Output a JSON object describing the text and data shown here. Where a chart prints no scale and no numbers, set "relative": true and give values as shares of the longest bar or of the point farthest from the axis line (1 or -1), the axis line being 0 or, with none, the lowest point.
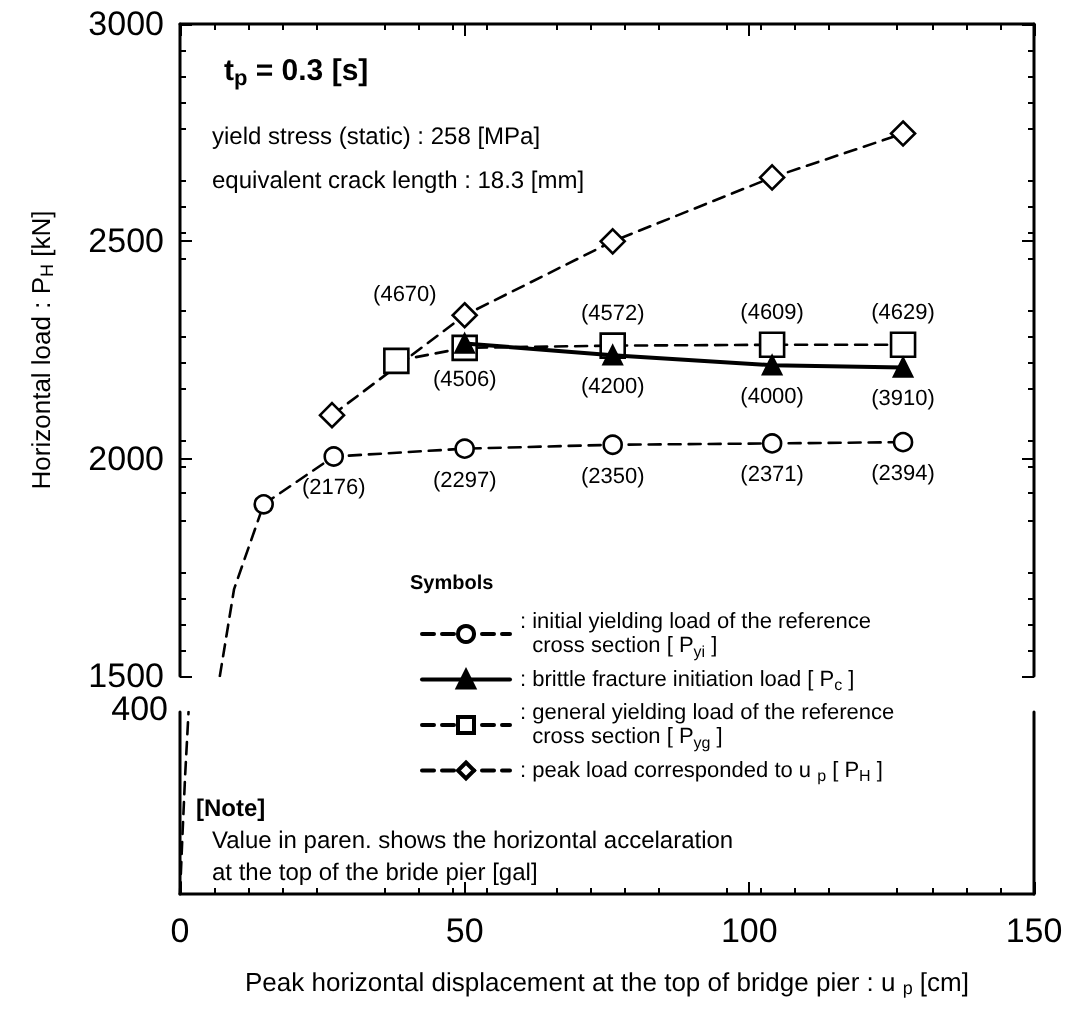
{
  "chart_data": [
    {
      "type": "line",
      "ylabel": "Horizontal load : P$_{H}$ [kN]",
      "legend_title": "Symbols",
      "legend": "bottom right",
      "tick_labels": "y",
      "grid": false,
      "annotations": [
        "t$_{p}$ = 0.3 [s]",
        "yield stress (static) : 258 [MPa]",
        "equivalent crack length : 18.3 [mm]",
        {
          "text": "(2176)",
          "x": 27,
          "y": 2005
        },
        {
          "text": "(2297)",
          "x": 50,
          "y": 2023
        },
        {
          "text": "(2350)",
          "x": 76,
          "y": 2032
        },
        {
          "text": "(2371)",
          "x": 104,
          "y": 2035
        },
        {
          "text": "(2394)",
          "x": 127,
          "y": 2038
        },
        {
          "text": "(4670)",
          "x": 50,
          "y": 2265
        },
        {
          "text": "(4200)",
          "x": 76,
          "y": 2238
        },
        {
          "text": "(4000)",
          "x": 104,
          "y": 2215
        },
        {
          "text": "(3910)",
          "x": 127,
          "y": 2210
        },
        {
          "text": "(4506)",
          "x": 50,
          "y": 2255
        },
        {
          "text": "(4572)",
          "x": 76,
          "y": 2260
        },
        {
          "text": "(4609)",
          "x": 104,
          "y": 2262
        },
        {
          "text": "(4629)",
          "x": 127,
          "y": 2262
        }
      ],
      "xlim": [
        0,
        150
      ],
      "xticks": [
        0,
        50,
        100,
        150
      ],
      "ylim": [
        1500,
        3000
      ],
      "yticks": [
        1500,
        2000,
        2500,
        3000
      ],
      "series": [
        {
          "name": ": initial yielding load of the reference\ncross section [ P$_{yi}$ ]",
          "color": "#000000",
          "marker": "circle",
          "line_style": "dashed",
          "x": [
            14.7,
            27,
            50,
            76,
            104,
            127
          ],
          "values": [
            1895,
            2005,
            2023,
            2032,
            2035,
            2038
          ]
        },
        {
          "name": ": brittle fracture initiation load [ P$_{c}$ ]",
          "color": "#000000",
          "marker": "triangle",
          "line_style": "solid",
          "x": [
            50,
            76,
            104,
            127
          ],
          "values": [
            2265,
            2238,
            2215,
            2210
          ]
        },
        {
          "name": ": general yielding load of the reference\ncross section [ P$_{yg}$ ]",
          "color": "#000000",
          "marker": "square",
          "line_style": "dashed",
          "x": [
            38,
            50,
            76,
            104,
            127
          ],
          "values": [
            2225,
            2255,
            2260,
            2262,
            2262
          ]
        },
        {
          "name": ": peak load corresponded to u $_{p}$ [ P$_{H}$ ]",
          "color": "#000000",
          "marker": "diamond",
          "line_style": "dashed",
          "x": [
            26.7,
            50,
            76,
            104,
            127
          ],
          "values": [
            2100,
            2330,
            2500,
            2647,
            2748
          ]
        },
        {
          "color": "#000000",
          "marker": "none",
          "line_style": "dashed",
          "x": [
            7,
            9.5,
            14.7
          ],
          "values": [
            1500,
            1700,
            1895
          ]
        }
      ]
    },
    {
      "type": "line",
      "xlabel": "Peak horizontal displacement at the top of bridge pier : u $_{p}$ [cm]",
      "grid": false,
      "relative": true,
      "annotations": [
        "400",
        "[Note]",
        "Value in paren. shows the horizontal accelaration\nat the top of the bride pier [gal]"
      ],
      "xlim": [
        0,
        150
      ],
      "xticks": [
        0,
        50,
        100,
        150
      ],
      "series": [
        {
          "color": "#000000",
          "marker": "none",
          "line_style": "dashed",
          "x": [
            0,
            0.4,
            0.9,
            1.5
          ],
          "values": [
            0,
            0.3,
            0.65,
            1
          ]
        }
      ]
    }
  ]
}
